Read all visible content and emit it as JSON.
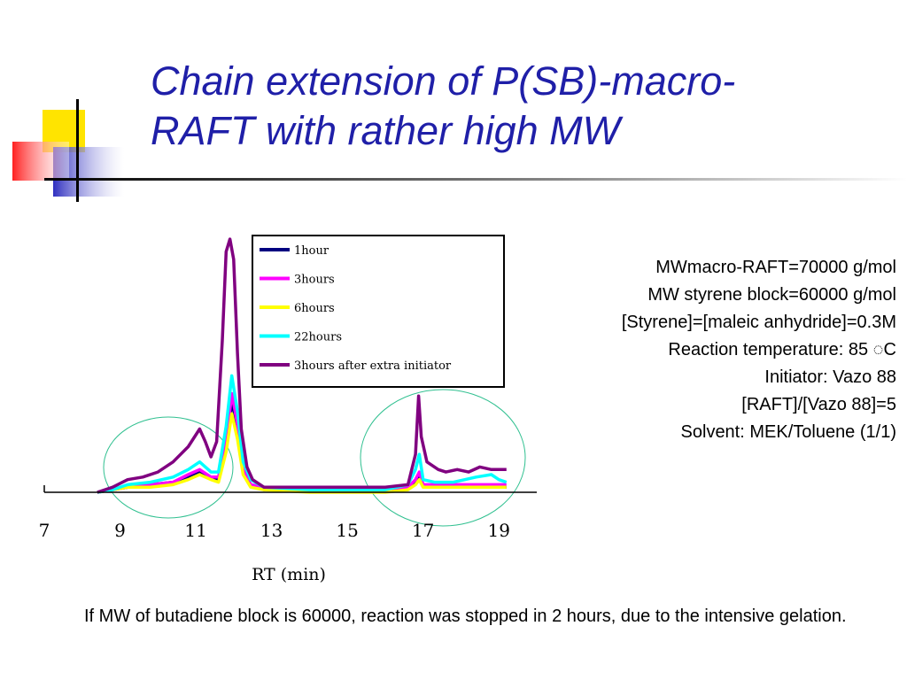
{
  "slide": {
    "title_lines": [
      "Chain extension of P(SB)-macro-",
      "RAFT with rather high MW"
    ],
    "info_lines": [
      "MWmacro-RAFT=70000 g/mol",
      "MW styrene block=60000 g/mol",
      "[Styrene]=[maleic anhydride]=0.3M",
      "Reaction temperature: 85 ◌C",
      "Initiator: Vazo 88",
      "[RAFT]/[Vazo 88]=5",
      "Solvent: MEK/Toluene (1/1)"
    ],
    "note": "If MW of butadiene block is 60000, reaction was stopped in 2 hours, due to the intensive gelation."
  },
  "chart_data": {
    "type": "line",
    "title": "",
    "xlabel": "RT (min)",
    "ylabel": "",
    "xlim": [
      7,
      20
    ],
    "ylim": [
      0,
      100
    ],
    "xticks": [
      7,
      9,
      11,
      13,
      15,
      17,
      19
    ],
    "grid": false,
    "legend": "top-right",
    "series": [
      {
        "name": "1hour",
        "color": "#000080",
        "x": [
          8.4,
          8.8,
          9.2,
          9.8,
          10.4,
          10.8,
          11.1,
          11.4,
          11.6,
          11.8,
          11.95,
          12.1,
          12.25,
          12.45,
          12.8,
          14.0,
          15.0,
          16.0,
          16.6,
          16.8,
          16.9,
          17.0,
          17.3,
          17.8,
          18.4,
          19.0,
          19.2
        ],
        "y": [
          0,
          1,
          2,
          3,
          4,
          6,
          8,
          6,
          5,
          18,
          36,
          25,
          8,
          3,
          1,
          1,
          1,
          1,
          2,
          4,
          7,
          3,
          2,
          2,
          2,
          2,
          2
        ]
      },
      {
        "name": "3hours",
        "color": "#ff00ff",
        "x": [
          8.4,
          8.8,
          9.2,
          9.8,
          10.4,
          10.8,
          11.1,
          11.4,
          11.6,
          11.8,
          11.95,
          12.1,
          12.25,
          12.45,
          12.8,
          14.0,
          15.0,
          16.0,
          16.6,
          16.8,
          16.9,
          17.0,
          17.3,
          17.8,
          18.4,
          19.0,
          19.2
        ],
        "y": [
          0,
          1,
          2,
          3,
          4,
          7,
          9,
          6,
          6,
          20,
          39,
          27,
          9,
          3,
          2,
          1,
          1,
          1,
          2,
          5,
          8,
          3,
          3,
          3,
          3,
          3,
          3
        ]
      },
      {
        "name": "6hours",
        "color": "#ffff00",
        "x": [
          8.4,
          8.8,
          9.2,
          9.8,
          10.4,
          10.8,
          11.1,
          11.4,
          11.6,
          11.8,
          11.95,
          12.1,
          12.25,
          12.45,
          12.8,
          14.0,
          15.0,
          16.0,
          16.6,
          16.8,
          16.9,
          17.0,
          17.3,
          17.8,
          18.4,
          19.0,
          19.2
        ],
        "y": [
          0,
          1,
          2,
          2,
          3,
          5,
          7,
          5,
          4,
          16,
          31,
          21,
          7,
          2,
          1,
          0,
          0,
          0,
          1,
          3,
          5,
          2,
          2,
          2,
          2,
          2,
          2
        ]
      },
      {
        "name": "22hours",
        "color": "#00ffff",
        "x": [
          8.4,
          8.8,
          9.2,
          9.8,
          10.4,
          10.8,
          11.1,
          11.4,
          11.6,
          11.8,
          11.95,
          12.1,
          12.25,
          12.45,
          12.8,
          14.0,
          15.0,
          16.0,
          16.6,
          16.8,
          16.9,
          17.0,
          17.3,
          17.8,
          18.4,
          18.8,
          19.0,
          19.2
        ],
        "y": [
          0,
          1,
          3,
          4,
          6,
          9,
          12,
          8,
          8,
          26,
          46,
          32,
          12,
          5,
          2,
          1,
          1,
          1,
          3,
          9,
          15,
          5,
          4,
          4,
          6,
          7,
          5,
          4
        ]
      },
      {
        "name": "3hours after extra initiator",
        "color": "#800080",
        "x": [
          8.4,
          8.8,
          9.2,
          9.6,
          10.0,
          10.4,
          10.8,
          11.1,
          11.25,
          11.4,
          11.55,
          11.7,
          11.8,
          11.9,
          12.0,
          12.1,
          12.2,
          12.35,
          12.5,
          12.8,
          14.0,
          15.0,
          16.0,
          16.6,
          16.8,
          16.88,
          16.95,
          17.1,
          17.4,
          17.6,
          17.9,
          18.2,
          18.5,
          18.8,
          19.2
        ],
        "y": [
          0,
          2,
          5,
          6,
          8,
          12,
          18,
          25,
          20,
          14,
          20,
          60,
          95,
          100,
          92,
          55,
          25,
          10,
          5,
          2,
          2,
          2,
          2,
          3,
          15,
          38,
          22,
          12,
          9,
          8,
          9,
          8,
          10,
          9,
          9
        ]
      }
    ]
  }
}
